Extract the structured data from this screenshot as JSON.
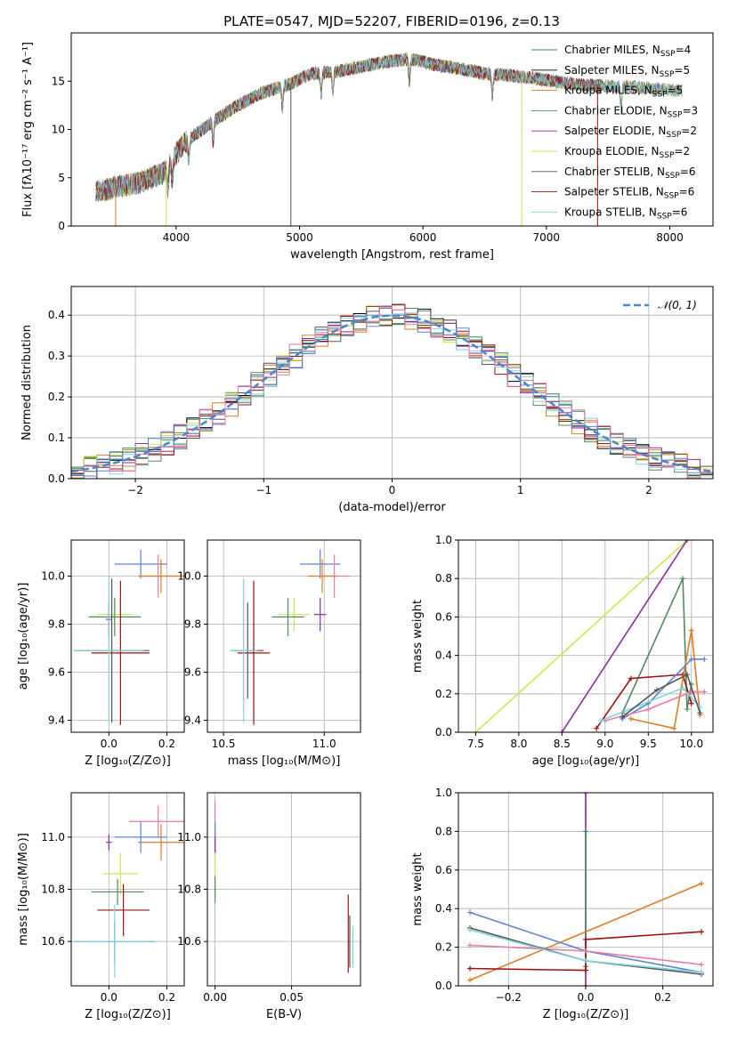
{
  "figure_title": "PLATE=0547, MJD=52207, FIBERID=0196, z=0.13",
  "colors": {
    "chabrier_miles": "#2e8b57",
    "salpeter_miles": "#000000",
    "kroupa_miles": "#e07b20",
    "chabrier_elodie": "#4f8a5f",
    "salpeter_elodie": "#8e2aa8",
    "kroupa_elodie": "#cfe552",
    "chabrier_stelib": "#555555",
    "salpeter_stelib": "#a01010",
    "kroupa_stelib": "#80d4dd",
    "blue_model": "#5b84d6",
    "pink_model": "#e87aa5",
    "gauss": "#4a86d0"
  },
  "legend": [
    {
      "label": "Chabrier MILES, N",
      "sub": "SSP",
      "suffix": "=4",
      "color": "#2e8b57"
    },
    {
      "label": "Salpeter MILES, N",
      "sub": "SSP",
      "suffix": "=5",
      "color": "#000000"
    },
    {
      "label": "Kroupa MILES, N",
      "sub": "SSP",
      "suffix": "=5",
      "color": "#e07b20"
    },
    {
      "label": "Chabrier ELODIE, N",
      "sub": "SSP",
      "suffix": "=3",
      "color": "#4f8a5f"
    },
    {
      "label": "Salpeter ELODIE, N",
      "sub": "SSP",
      "suffix": "=2",
      "color": "#8e2aa8"
    },
    {
      "label": "Kroupa ELODIE, N",
      "sub": "SSP",
      "suffix": "=2",
      "color": "#cfe552"
    },
    {
      "label": "Chabrier STELIB, N",
      "sub": "SSP",
      "suffix": "=6",
      "color": "#555555"
    },
    {
      "label": "Salpeter STELIB, N",
      "sub": "SSP",
      "suffix": "=6",
      "color": "#a01010"
    },
    {
      "label": "Kroupa STELIB, N",
      "sub": "SSP",
      "suffix": "=6",
      "color": "#80d4dd"
    }
  ],
  "chart_data": [
    {
      "id": "spectrum",
      "type": "line",
      "xlabel": "wavelength [Angstrom, rest frame]",
      "ylabel": "Flux [fλ10⁻¹⁷ erg cm⁻² s⁻¹ A⁻¹]",
      "xlim": [
        3150,
        8350
      ],
      "ylim": [
        0,
        20
      ],
      "xticks": [
        4000,
        5000,
        6000,
        7000,
        8000
      ],
      "yticks": [
        0,
        5,
        10,
        15
      ],
      "grid": false,
      "legend_position": "top-right",
      "continuum": [
        [
          3350,
          3.5
        ],
        [
          3500,
          4.0
        ],
        [
          3700,
          4.5
        ],
        [
          3900,
          5.5
        ],
        [
          4000,
          7.5
        ],
        [
          4100,
          9.0
        ],
        [
          4300,
          10.8
        ],
        [
          4500,
          12.5
        ],
        [
          4700,
          13.8
        ],
        [
          4900,
          14.6
        ],
        [
          5100,
          15.8
        ],
        [
          5300,
          16.0
        ],
        [
          5500,
          16.5
        ],
        [
          5700,
          17.0
        ],
        [
          5900,
          17.3
        ],
        [
          6100,
          16.7
        ],
        [
          6300,
          16.3
        ],
        [
          6500,
          15.8
        ],
        [
          6700,
          15.6
        ],
        [
          6900,
          15.3
        ],
        [
          7100,
          14.9
        ],
        [
          7300,
          14.6
        ],
        [
          7500,
          14.5
        ],
        [
          7700,
          14.4
        ],
        [
          7900,
          14.2
        ],
        [
          8100,
          14.0
        ]
      ],
      "absorption_lines": [
        3934,
        3969,
        4102,
        4300,
        4861,
        5175,
        5270,
        5890,
        6563,
        7605
      ],
      "drops": [
        {
          "x": 3510,
          "color": "#e07b20"
        },
        {
          "x": 3920,
          "color": "#cfe552"
        },
        {
          "x": 4930,
          "color": "#555555"
        },
        {
          "x": 6800,
          "color": "#cfe552"
        },
        {
          "x": 7415,
          "color": "#a01010"
        }
      ]
    },
    {
      "id": "residuals",
      "type": "line",
      "xlabel": "(data-model)/error",
      "ylabel": "Normed distribution",
      "xlim": [
        -2.5,
        2.5
      ],
      "ylim": [
        0,
        0.47
      ],
      "xticks": [
        -2,
        -1,
        0,
        1,
        2
      ],
      "yticks": [
        0.0,
        0.1,
        0.2,
        0.3,
        0.4
      ],
      "grid": true,
      "legend": "𝒩(0, 1)",
      "legend_position": "top-right",
      "gaussian": {
        "mean": 0,
        "sigma": 1
      }
    },
    {
      "id": "age_vs_z",
      "type": "scatter",
      "xlabel": "Z [log₁₀(Z/Z⊙)]",
      "ylabel": "age  [log₁₀(age/yr)]",
      "xlim": [
        -0.13,
        0.26
      ],
      "ylim": [
        9.35,
        10.15
      ],
      "xticks": [
        0.0,
        0.2
      ],
      "yticks": [
        9.4,
        9.6,
        9.8,
        10.0
      ],
      "grid": true,
      "points": [
        {
          "x": 0.11,
          "y": 10.05,
          "xe": 0.09,
          "ye": 0.06,
          "color": "#5b84d6"
        },
        {
          "x": 0.17,
          "y": 10.0,
          "xe": 0.07,
          "ye": 0.09,
          "color": "#e87aa5"
        },
        {
          "x": 0.18,
          "y": 10.0,
          "xe": 0.08,
          "ye": 0.07,
          "color": "#e07b20"
        },
        {
          "x": 0.02,
          "y": 9.84,
          "xe": 0.06,
          "ye": 0.07,
          "color": "#cfe552"
        },
        {
          "x": 0.02,
          "y": 9.83,
          "xe": 0.09,
          "ye": 0.08,
          "color": "#4f8a5f"
        },
        {
          "x": 0.0,
          "y": 9.82,
          "xe": 0.01,
          "ye": 0.07,
          "color": "#8e2aa8"
        },
        {
          "x": 0.01,
          "y": 9.69,
          "xe": 0.13,
          "ye": 0.3,
          "color": "#555555"
        },
        {
          "x": 0.04,
          "y": 9.68,
          "xe": 0.1,
          "ye": 0.3,
          "color": "#a01010"
        },
        {
          "x": 0.0,
          "y": 9.69,
          "xe": 0.12,
          "ye": 0.3,
          "color": "#80d4dd"
        }
      ]
    },
    {
      "id": "age_vs_mass",
      "type": "scatter",
      "xlabel": "mass [log₁₀(M/M⊙)]",
      "ylabel": "",
      "xlim": [
        10.42,
        11.18
      ],
      "ylim": [
        9.35,
        10.15
      ],
      "xticks": [
        10.5,
        11.0
      ],
      "yticks": [
        9.4,
        9.6,
        9.8,
        10.0
      ],
      "grid": true,
      "points": [
        {
          "x": 10.98,
          "y": 10.05,
          "xe": 0.1,
          "ye": 0.06,
          "color": "#5b84d6"
        },
        {
          "x": 11.05,
          "y": 10.0,
          "xe": 0.08,
          "ye": 0.09,
          "color": "#e87aa5"
        },
        {
          "x": 10.99,
          "y": 10.0,
          "xe": 0.07,
          "ye": 0.07,
          "color": "#e07b20"
        },
        {
          "x": 10.85,
          "y": 9.84,
          "xe": 0.08,
          "ye": 0.07,
          "color": "#cfe552"
        },
        {
          "x": 10.82,
          "y": 9.83,
          "xe": 0.08,
          "ye": 0.08,
          "color": "#4f8a5f"
        },
        {
          "x": 10.98,
          "y": 9.84,
          "xe": 0.03,
          "ye": 0.07,
          "color": "#8e2aa8"
        },
        {
          "x": 10.62,
          "y": 9.69,
          "xe": 0.08,
          "ye": 0.2,
          "color": "#555555"
        },
        {
          "x": 10.65,
          "y": 9.68,
          "xe": 0.08,
          "ye": 0.3,
          "color": "#a01010"
        },
        {
          "x": 10.6,
          "y": 9.69,
          "xe": 0.07,
          "ye": 0.3,
          "color": "#80d4dd"
        }
      ]
    },
    {
      "id": "mass_weight_vs_age",
      "type": "line",
      "xlabel": "age  [log₁₀(age/yr)]",
      "ylabel": "mass weight",
      "xlim": [
        7.3,
        10.25
      ],
      "ylim": [
        0,
        1.0
      ],
      "xticks": [
        7.5,
        8.0,
        8.5,
        9.0,
        9.5,
        10.0
      ],
      "yticks": [
        0.0,
        0.2,
        0.4,
        0.6,
        0.8,
        1.0
      ],
      "grid": true,
      "series": [
        {
          "color": "#cfe552",
          "x": [
            7.5,
            9.95
          ],
          "y": [
            0.0,
            1.0
          ]
        },
        {
          "color": "#8e2aa8",
          "x": [
            8.5,
            9.95
          ],
          "y": [
            0.0,
            1.0
          ]
        },
        {
          "color": "#4f8a5f",
          "x": [
            9.2,
            9.9,
            9.95,
            10.0
          ],
          "y": [
            0.1,
            0.8,
            0.12,
            0.25
          ]
        },
        {
          "color": "#a01010",
          "x": [
            8.9,
            9.3,
            9.9,
            10.0
          ],
          "y": [
            0.02,
            0.28,
            0.3,
            0.15
          ]
        },
        {
          "color": "#e07b20",
          "x": [
            9.3,
            9.8,
            10.0,
            10.1
          ],
          "y": [
            0.07,
            0.02,
            0.53,
            0.09
          ]
        },
        {
          "color": "#5b84d6",
          "x": [
            9.2,
            9.5,
            10.0,
            10.15
          ],
          "y": [
            0.07,
            0.15,
            0.38,
            0.38
          ]
        },
        {
          "color": "#e87aa5",
          "x": [
            9.0,
            9.5,
            10.0,
            10.15
          ],
          "y": [
            0.06,
            0.12,
            0.21,
            0.21
          ]
        },
        {
          "color": "#80d4dd",
          "x": [
            8.95,
            9.4,
            9.9,
            10.1
          ],
          "y": [
            0.06,
            0.14,
            0.23,
            0.13
          ]
        },
        {
          "color": "#555555",
          "x": [
            9.2,
            9.6,
            9.95,
            10.1
          ],
          "y": [
            0.08,
            0.22,
            0.3,
            0.1
          ]
        }
      ]
    },
    {
      "id": "mass_vs_z",
      "type": "scatter",
      "xlabel": "Z [log₁₀(Z/Z⊙)]",
      "ylabel": "mass [log₁₀(M/M⊙)]",
      "xlim": [
        -0.13,
        0.26
      ],
      "ylim": [
        10.43,
        11.17
      ],
      "xticks": [
        0.0,
        0.2
      ],
      "yticks": [
        10.6,
        10.8,
        11.0
      ],
      "grid": true,
      "points": [
        {
          "x": 0.17,
          "y": 11.06,
          "xe": 0.1,
          "ye": 0.06,
          "color": "#e87aa5"
        },
        {
          "x": 0.18,
          "y": 10.98,
          "xe": 0.08,
          "ye": 0.07,
          "color": "#e07b20"
        },
        {
          "x": 0.11,
          "y": 11.0,
          "xe": 0.09,
          "ye": 0.06,
          "color": "#5b84d6"
        },
        {
          "x": 0.0,
          "y": 10.98,
          "xe": 0.01,
          "ye": 0.03,
          "color": "#8e2aa8"
        },
        {
          "x": 0.04,
          "y": 10.86,
          "xe": 0.06,
          "ye": 0.08,
          "color": "#cfe552"
        },
        {
          "x": 0.03,
          "y": 10.79,
          "xe": 0.09,
          "ye": 0.05,
          "color": "#4f8a5f"
        },
        {
          "x": 0.05,
          "y": 10.72,
          "xe": 0.09,
          "ye": 0.1,
          "color": "#a01010"
        },
        {
          "x": 0.02,
          "y": 10.6,
          "xe": 0.14,
          "ye": 0.08,
          "color": "#555555"
        },
        {
          "x": 0.02,
          "y": 10.6,
          "xe": 0.14,
          "ye": 0.14,
          "color": "#80d4dd"
        }
      ]
    },
    {
      "id": "mass_vs_ebv",
      "type": "scatter",
      "xlabel": "E(B-V)",
      "ylabel": "",
      "xlim": [
        -0.005,
        0.095
      ],
      "ylim": [
        10.43,
        11.17
      ],
      "xticks": [
        0.0,
        0.05
      ],
      "yticks": [
        10.6,
        10.8,
        11.0
      ],
      "grid": true,
      "points": [
        {
          "x": 0.0,
          "y": 11.06,
          "xe": 0.0,
          "ye": 0.08,
          "color": "#e87aa5"
        },
        {
          "x": 0.0,
          "y": 10.98,
          "xe": 0.0,
          "ye": 0.07,
          "color": "#e07b20"
        },
        {
          "x": 0.0,
          "y": 11.0,
          "xe": 0.0,
          "ye": 0.06,
          "color": "#5b84d6"
        },
        {
          "x": 0.0,
          "y": 10.86,
          "xe": 0.0,
          "ye": 0.08,
          "color": "#cfe552"
        },
        {
          "x": 0.0,
          "y": 10.8,
          "xe": 0.0,
          "ye": 0.05,
          "color": "#4f8a5f"
        },
        {
          "x": 0.0,
          "y": 10.97,
          "xe": 0.0,
          "ye": 0.03,
          "color": "#8e2aa8"
        },
        {
          "x": 0.087,
          "y": 10.63,
          "xe": 0.0,
          "ye": 0.15,
          "color": "#a01010"
        },
        {
          "x": 0.09,
          "y": 10.58,
          "xe": 0.0,
          "ye": 0.08,
          "color": "#80d4dd"
        },
        {
          "x": 0.088,
          "y": 10.6,
          "xe": 0.0,
          "ye": 0.1,
          "color": "#555555"
        }
      ]
    },
    {
      "id": "mass_weight_vs_z",
      "type": "line",
      "xlabel": "Z [log₁₀(Z/Z⊙)]",
      "ylabel": "mass weight",
      "xlim": [
        -0.33,
        0.33
      ],
      "ylim": [
        0,
        1.0
      ],
      "xticks": [
        -0.2,
        0.0,
        0.2
      ],
      "yticks": [
        0.0,
        0.2,
        0.4,
        0.6,
        0.8,
        1.0
      ],
      "grid": true,
      "series": [
        {
          "color": "#cfe552",
          "x": [
            0.0,
            0.0
          ],
          "y": [
            0.0,
            1.0
          ]
        },
        {
          "color": "#8e2aa8",
          "x": [
            0.0,
            0.0
          ],
          "y": [
            0.0,
            1.0
          ]
        },
        {
          "color": "#4f8a5f",
          "x": [
            0.0,
            0.0
          ],
          "y": [
            0.1,
            0.8
          ]
        },
        {
          "color": "#e07b20",
          "x": [
            -0.3,
            0.3
          ],
          "y": [
            0.03,
            0.53
          ]
        },
        {
          "color": "#5b84d6",
          "x": [
            -0.3,
            0.0,
            0.3
          ],
          "y": [
            0.38,
            0.18,
            0.07
          ]
        },
        {
          "color": "#a01010",
          "x": [
            -0.3,
            0.0,
            0.0,
            0.3
          ],
          "y": [
            0.09,
            0.08,
            0.24,
            0.28
          ]
        },
        {
          "color": "#e87aa5",
          "x": [
            -0.3,
            0.0,
            0.3
          ],
          "y": [
            0.21,
            0.18,
            0.11
          ]
        },
        {
          "color": "#555555",
          "x": [
            -0.3,
            0.0,
            0.3
          ],
          "y": [
            0.3,
            0.13,
            0.06
          ]
        },
        {
          "color": "#80d4dd",
          "x": [
            -0.3,
            0.0,
            0.3
          ],
          "y": [
            0.29,
            0.13,
            0.07
          ]
        }
      ]
    }
  ]
}
